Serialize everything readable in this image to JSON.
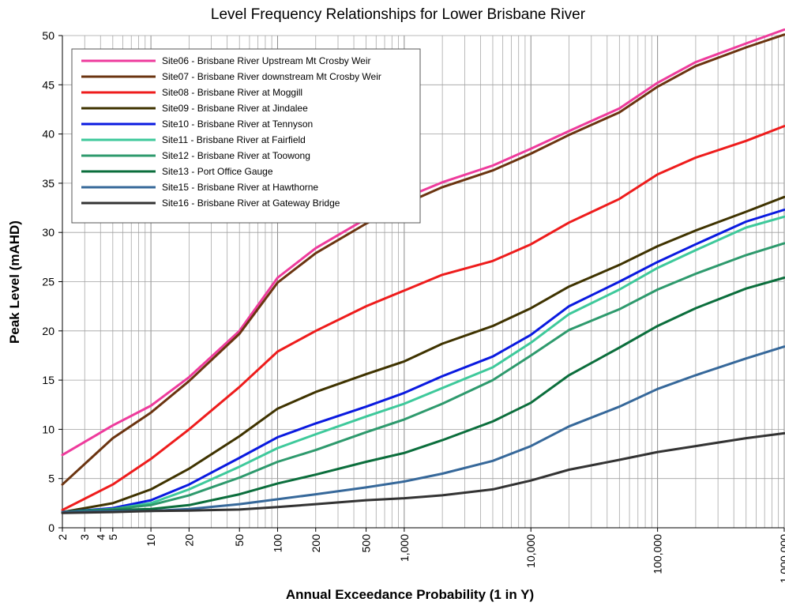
{
  "chart_data": {
    "type": "line",
    "title": "Level Frequency Relationships for Lower Brisbane River",
    "xlabel": "Annual Exceedance Probability (1 in Y)",
    "ylabel": "Peak Level (mAHD)",
    "x_scale": "log",
    "xlim": [
      2,
      1000000
    ],
    "ylim": [
      0,
      50
    ],
    "x_ticks": [
      2,
      3,
      4,
      5,
      10,
      20,
      50,
      100,
      200,
      500,
      1000,
      10000,
      100000,
      1000000
    ],
    "x_tick_labels": [
      "2",
      "3",
      "4",
      "5",
      "10",
      "20",
      "50",
      "100",
      "200",
      "500",
      "1,000",
      "10,000",
      "100,000",
      "1,000,000"
    ],
    "y_ticks": [
      0,
      5,
      10,
      15,
      20,
      25,
      30,
      35,
      40,
      45,
      50
    ],
    "y_tick_labels": [
      "0",
      "5",
      "10",
      "15",
      "20",
      "25",
      "30",
      "35",
      "40",
      "45",
      "50"
    ],
    "grid": true,
    "legend_position": "top-left",
    "x": [
      2,
      5,
      10,
      20,
      50,
      100,
      200,
      500,
      1000,
      2000,
      5000,
      10000,
      20000,
      50000,
      100000,
      200000,
      500000,
      1000000
    ],
    "series": [
      {
        "name": "Site06 - Brisbane River Upstream Mt Crosby Weir",
        "color": "#ee3b9c",
        "values": [
          7.4,
          10.4,
          12.4,
          15.3,
          20.0,
          25.4,
          28.4,
          31.4,
          33.5,
          35.1,
          36.8,
          38.5,
          40.3,
          42.6,
          45.2,
          47.3,
          49.2,
          50.6
        ]
      },
      {
        "name": "Site07 - Brisbane River downstream Mt Crosby Weir",
        "color": "#6b3410",
        "values": [
          4.4,
          9.1,
          11.7,
          14.9,
          19.7,
          24.9,
          27.9,
          30.9,
          32.9,
          34.6,
          36.3,
          38.0,
          39.9,
          42.2,
          44.8,
          46.9,
          48.8,
          50.1
        ]
      },
      {
        "name": "Site08 - Brisbane River at Moggill",
        "color": "#ee1c1c",
        "values": [
          1.8,
          4.4,
          7.0,
          10.0,
          14.3,
          17.9,
          20.0,
          22.5,
          24.1,
          25.7,
          27.1,
          28.8,
          31.0,
          33.4,
          35.9,
          37.6,
          39.3,
          40.8
        ]
      },
      {
        "name": "Site09 - Brisbane River at Jindalee",
        "color": "#3f3300",
        "values": [
          1.6,
          2.5,
          3.9,
          6.0,
          9.3,
          12.1,
          13.8,
          15.6,
          16.9,
          18.7,
          20.5,
          22.3,
          24.5,
          26.7,
          28.6,
          30.2,
          32.1,
          33.6
        ]
      },
      {
        "name": "Site10 - Brisbane River at Tennyson",
        "color": "#0a1ae0",
        "values": [
          1.6,
          2.0,
          2.8,
          4.4,
          7.1,
          9.2,
          10.6,
          12.3,
          13.7,
          15.4,
          17.4,
          19.6,
          22.5,
          25.0,
          27.0,
          28.8,
          31.1,
          32.3
        ]
      },
      {
        "name": "Site11 - Brisbane River at Fairfield",
        "color": "#3ec99b",
        "values": [
          1.6,
          1.9,
          2.5,
          3.9,
          6.2,
          8.1,
          9.5,
          11.3,
          12.6,
          14.2,
          16.3,
          18.8,
          21.7,
          24.2,
          26.4,
          28.2,
          30.5,
          31.6
        ]
      },
      {
        "name": "Site12 - Brisbane River at Toowong",
        "color": "#2e9a6d",
        "values": [
          1.6,
          1.9,
          2.3,
          3.3,
          5.1,
          6.7,
          7.9,
          9.7,
          11.0,
          12.6,
          15.0,
          17.5,
          20.1,
          22.2,
          24.2,
          25.8,
          27.7,
          28.9
        ]
      },
      {
        "name": "Site13 - Port Office Gauge",
        "color": "#0b6e3c",
        "values": [
          1.6,
          1.8,
          1.9,
          2.3,
          3.4,
          4.5,
          5.4,
          6.7,
          7.6,
          8.9,
          10.8,
          12.7,
          15.5,
          18.3,
          20.5,
          22.3,
          24.3,
          25.4
        ]
      },
      {
        "name": "Site15 - Brisbane River at Hawthorne",
        "color": "#36689a",
        "values": [
          1.6,
          1.7,
          1.7,
          1.9,
          2.4,
          2.9,
          3.4,
          4.1,
          4.7,
          5.5,
          6.8,
          8.3,
          10.3,
          12.3,
          14.1,
          15.5,
          17.2,
          18.4
        ]
      },
      {
        "name": "Site16 - Brisbane River at Gateway Bridge",
        "color": "#333333",
        "values": [
          1.5,
          1.6,
          1.7,
          1.75,
          1.85,
          2.1,
          2.4,
          2.8,
          3.0,
          3.3,
          3.9,
          4.8,
          5.9,
          6.9,
          7.7,
          8.3,
          9.1,
          9.6
        ]
      }
    ]
  }
}
